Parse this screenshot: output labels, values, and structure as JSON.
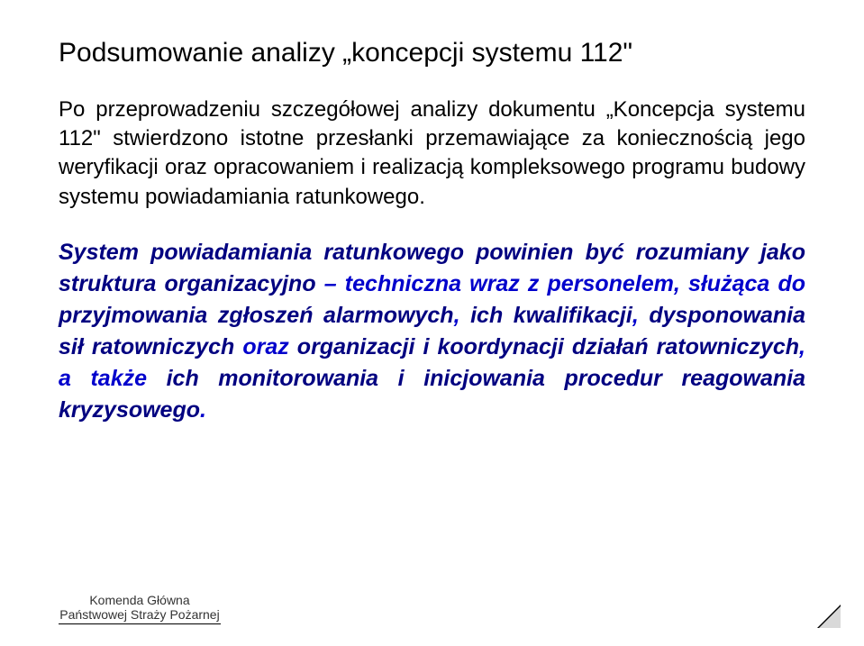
{
  "title": "Podsumowanie analizy „koncepcji systemu 112\"",
  "intro": "Po przeprowadzeniu szczegółowej analizy dokumentu „Koncepcja systemu 112\" stwierdzono istotne przesłanki przemawiające za koniecznością jego weryfikacji oraz opracowaniem i realizacją kompleksowego programu budowy systemu powiadamiania ratunkowego.",
  "emph": {
    "r1": "System powiadamiania ratunkowego powinien być rozumiany jako struktura organizacyjno",
    "r2": " – techniczna wraz z personelem, służąca do ",
    "r3": "przyjmowania zgłoszeń alarmowych",
    "r4": ", ",
    "r5": "ich kwalifikacji",
    "r6": ", ",
    "r7": "dysponowania sił ratowniczych",
    "r8": " oraz ",
    "r9": "organizacji  i koordynacji działań ratowniczych",
    "r10": ", a także ",
    "r11": "ich monitorowania i inicjowania procedur reagowania kryzysowego",
    "r12": "."
  },
  "footer": {
    "line1": "Komenda Główna",
    "line2": "Państwowej Straży Pożarnej"
  },
  "colors": {
    "title": "#000000",
    "body": "#000000",
    "emph_dark": "#000080",
    "emph_accent": "#0000cc",
    "background": "#ffffff"
  },
  "fonts": {
    "title_size_pt": 22,
    "body_size_pt": 18,
    "emph_size_pt": 19,
    "footer_size_pt": 11,
    "family": "Arial"
  }
}
